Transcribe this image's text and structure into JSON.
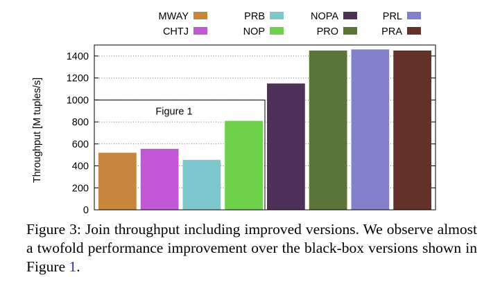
{
  "chart_data": {
    "type": "bar",
    "categories": [
      "MWAY",
      "CHTJ",
      "PRB",
      "NOP",
      "NOPA",
      "PRO",
      "PRL",
      "PRA"
    ],
    "values": [
      520,
      555,
      455,
      810,
      1150,
      1450,
      1460,
      1450
    ],
    "colors": [
      "#c8863c",
      "#c257d6",
      "#7ec8cd",
      "#6ed14a",
      "#4f3059",
      "#5a7536",
      "#8081c8",
      "#623228"
    ],
    "title": "",
    "xlabel": "",
    "ylabel": "Throughput [M tuples/s]",
    "ylim": [
      0,
      1500
    ],
    "yticks": [
      0,
      200,
      400,
      600,
      800,
      1000,
      1200,
      1400
    ],
    "grid": "horizontal dotted",
    "legend": {
      "placement": "top",
      "columns": 4,
      "rows": [
        [
          "MWAY",
          "PRB",
          "NOPA",
          "PRL"
        ],
        [
          "CHTJ",
          "NOP",
          "PRO",
          "PRA"
        ]
      ]
    },
    "annotations": [
      {
        "label": "Figure 1",
        "covers": [
          "MWAY",
          "CHTJ",
          "PRB",
          "NOP"
        ],
        "top_value": 1000
      }
    ]
  },
  "caption": {
    "prefix": "Figure 3: Join throughput including improved versions. We observe almost a twofold performance improvement over the black-box versions shown in Figure ",
    "ref": "1",
    "suffix": "."
  }
}
